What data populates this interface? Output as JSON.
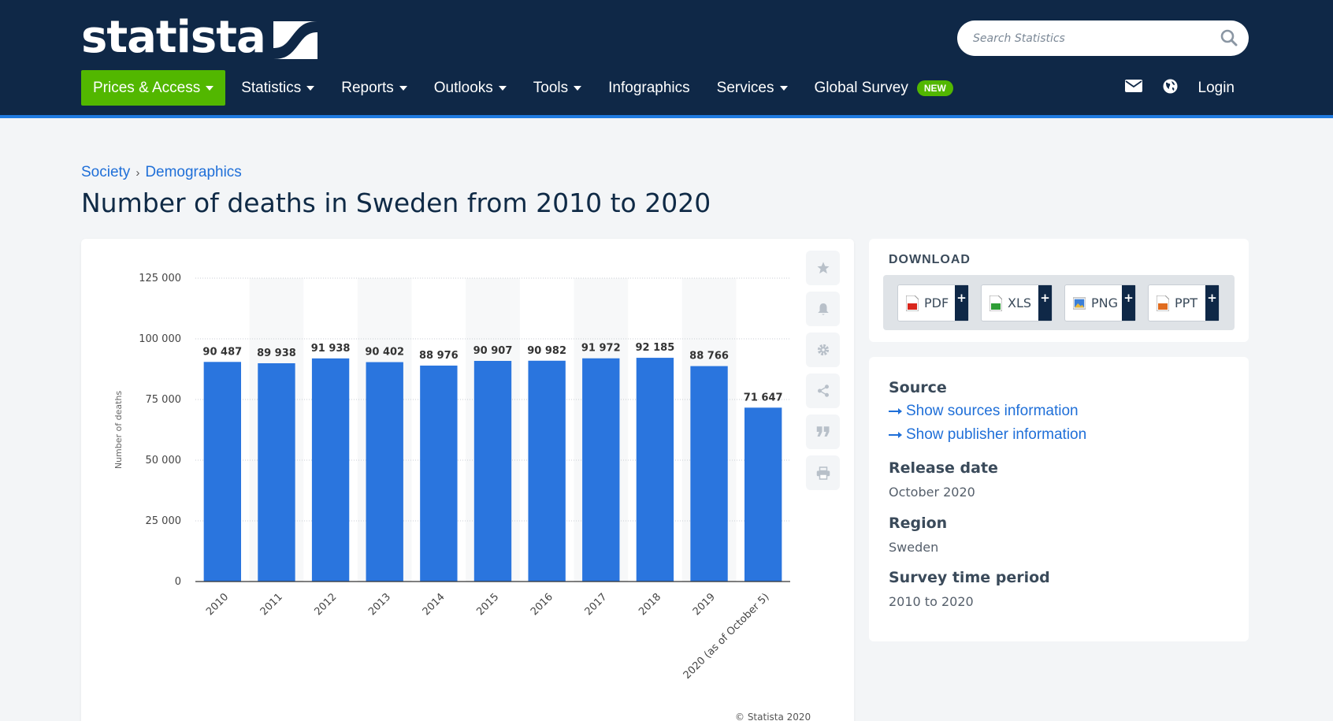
{
  "header": {
    "logo_text": "statista",
    "search_placeholder": "Search Statistics",
    "nav": [
      {
        "label": "Prices & Access",
        "dropdown": true
      },
      {
        "label": "Statistics",
        "dropdown": true
      },
      {
        "label": "Reports",
        "dropdown": true
      },
      {
        "label": "Outlooks",
        "dropdown": true
      },
      {
        "label": "Tools",
        "dropdown": true
      },
      {
        "label": "Infographics",
        "dropdown": false
      },
      {
        "label": "Services",
        "dropdown": true
      },
      {
        "label": "Global Survey",
        "dropdown": false,
        "badge": "NEW"
      }
    ],
    "right_icons": [
      "mail-icon",
      "globe-icon"
    ],
    "login_label": "Login",
    "colors": {
      "bg": "#0f2847",
      "accent_green": "#52b700",
      "accent_blue": "#1f7ae0"
    }
  },
  "breadcrumb": {
    "items": [
      "Society",
      "Demographics"
    ],
    "separator": "›"
  },
  "page_title": "Number of deaths in Sweden from 2010 to 2020",
  "chart_data": {
    "type": "bar",
    "categories": [
      "2010",
      "2011",
      "2012",
      "2013",
      "2014",
      "2015",
      "2016",
      "2017",
      "2018",
      "2019",
      "2020 (as of October 5)"
    ],
    "values": [
      90487,
      89938,
      91938,
      90402,
      88976,
      90907,
      90982,
      91972,
      92185,
      88766,
      71647
    ],
    "value_labels": [
      "90 487",
      "89 938",
      "91 938",
      "90 402",
      "88 976",
      "90 907",
      "90 982",
      "91 972",
      "92 185",
      "88 766",
      "71 647"
    ],
    "ylabel": "Number of deaths",
    "xlabel": "",
    "ylim": [
      0,
      125000
    ],
    "yticks": [
      0,
      25000,
      50000,
      75000,
      100000,
      125000
    ],
    "ytick_labels": [
      "0",
      "25 000",
      "50 000",
      "75 000",
      "100 000",
      "125 000"
    ],
    "bar_color": "#2a75de",
    "grid": true,
    "copyright": "© Statista 2020"
  },
  "side_tools": [
    "star-icon",
    "bell-icon",
    "gear-icon",
    "share-icon",
    "quote-icon",
    "print-icon"
  ],
  "download": {
    "title": "DOWNLOAD",
    "buttons": [
      {
        "label": "PDF",
        "icon": "pdf-file-icon",
        "color": "#d9261c"
      },
      {
        "label": "XLS",
        "icon": "xls-file-icon",
        "color": "#2e9e36"
      },
      {
        "label": "PNG",
        "icon": "png-file-icon",
        "color": "#3b7fd8"
      },
      {
        "label": "PPT",
        "icon": "ppt-file-icon",
        "color": "#e06c1f"
      }
    ]
  },
  "info": {
    "source_label": "Source",
    "source_link": "Show sources information",
    "publisher_link": "Show publisher information",
    "release_label": "Release date",
    "release_value": "October 2020",
    "region_label": "Region",
    "region_value": "Sweden",
    "period_label": "Survey time period",
    "period_value": "2010 to 2020"
  }
}
